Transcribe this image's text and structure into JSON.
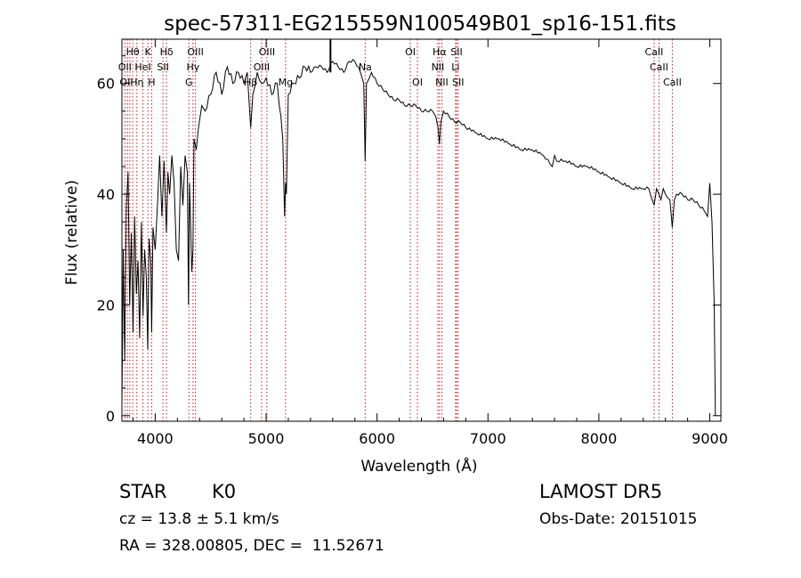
{
  "chart_data": {
    "type": "line",
    "title": "spec-57311-EG215559N100549B01_sp16-151.fits",
    "xlabel": "Wavelength (Å)",
    "ylabel": "Flux (relative)",
    "xlim": [
      3700,
      9100
    ],
    "ylim": [
      -1,
      68
    ],
    "xticks": [
      4000,
      5000,
      6000,
      7000,
      8000,
      9000
    ],
    "yticks": [
      0,
      20,
      40,
      60
    ],
    "grid": false,
    "series": [
      {
        "color": "#000000",
        "x": [
          3700,
          3712,
          3725,
          3740,
          3755,
          3770,
          3785,
          3800,
          3815,
          3830,
          3845,
          3860,
          3875,
          3890,
          3905,
          3920,
          3933,
          3945,
          3960,
          3968,
          3980,
          4000,
          4020,
          4040,
          4060,
          4080,
          4101,
          4115,
          4130,
          4150,
          4170,
          4190,
          4210,
          4230,
          4250,
          4270,
          4290,
          4300,
          4310,
          4330,
          4340,
          4350,
          4370,
          4390,
          4420,
          4450,
          4500,
          4550,
          4600,
          4650,
          4700,
          4750,
          4800,
          4830,
          4861,
          4880,
          4920,
          4960,
          5000,
          5050,
          5100,
          5150,
          5167,
          5175,
          5183,
          5200,
          5250,
          5300,
          5350,
          5400,
          5450,
          5500,
          5550,
          5600,
          5650,
          5700,
          5750,
          5800,
          5850,
          5880,
          5893,
          5905,
          5950,
          6000,
          6050,
          6100,
          6150,
          6200,
          6250,
          6300,
          6350,
          6400,
          6450,
          6500,
          6530,
          6550,
          6563,
          6575,
          6600,
          6650,
          6700,
          6750,
          6800,
          6900,
          7000,
          7100,
          7200,
          7300,
          7400,
          7500,
          7580,
          7600,
          7620,
          7700,
          7800,
          7900,
          8000,
          8100,
          8200,
          8300,
          8400,
          8450,
          8498,
          8520,
          8542,
          8560,
          8580,
          8600,
          8640,
          8662,
          8680,
          8700,
          8750,
          8800,
          8850,
          8900,
          8950,
          8980,
          9000,
          9020,
          9040,
          9050
        ],
        "y": [
          2,
          30,
          10,
          38,
          44,
          20,
          33,
          15,
          36,
          22,
          28,
          14,
          35,
          18,
          30,
          25,
          12,
          32,
          28,
          15,
          34,
          30,
          38,
          47,
          36,
          46,
          33,
          44,
          40,
          47,
          42,
          30,
          28,
          45,
          38,
          47,
          44,
          20,
          42,
          26,
          30,
          50,
          48,
          52,
          56,
          55,
          58,
          62,
          58,
          63,
          60,
          62,
          60,
          62,
          52,
          58,
          62,
          60,
          61,
          58,
          60,
          50,
          36,
          42,
          40,
          58,
          60,
          61,
          63,
          62,
          63,
          63,
          62,
          64,
          63,
          62,
          64,
          64,
          62,
          60,
          46,
          60,
          62,
          60,
          59,
          58,
          57,
          57,
          56,
          56,
          56,
          55,
          55,
          55,
          54,
          52,
          49,
          53,
          55,
          54,
          53,
          53,
          52,
          51,
          50,
          50,
          49,
          48,
          48,
          47,
          45,
          47,
          46,
          46,
          45,
          45,
          44,
          43,
          42,
          41,
          41,
          41,
          38,
          41,
          40,
          39,
          41,
          40,
          39,
          34,
          39,
          40,
          40,
          39,
          39,
          38,
          37,
          36,
          42,
          35,
          20,
          0
        ]
      }
    ],
    "line_labels": [
      {
        "text": "Hθ",
        "x": 3797,
        "row": 1
      },
      {
        "text": "K",
        "x": 3934,
        "row": 1
      },
      {
        "text": "Hδ",
        "x": 4102,
        "row": 1
      },
      {
        "text": "OIII",
        "x": 4363,
        "row": 1
      },
      {
        "text": "OIII",
        "x": 5007,
        "row": 1
      },
      {
        "text": "OI",
        "x": 6300,
        "row": 1
      },
      {
        "text": "Hα",
        "x": 6563,
        "row": 1
      },
      {
        "text": "SII",
        "x": 6717,
        "row": 1
      },
      {
        "text": "CaII",
        "x": 8498,
        "row": 1
      },
      {
        "text": "OII",
        "x": 3727,
        "row": 2
      },
      {
        "text": "HeI",
        "x": 3889,
        "row": 2
      },
      {
        "text": "SII",
        "x": 4070,
        "row": 2
      },
      {
        "text": "Hγ",
        "x": 4341,
        "row": 2
      },
      {
        "text": "OIII",
        "x": 4959,
        "row": 2
      },
      {
        "text": "Na",
        "x": 5893,
        "row": 2
      },
      {
        "text": "NII",
        "x": 6548,
        "row": 2
      },
      {
        "text": "Li",
        "x": 6708,
        "row": 2
      },
      {
        "text": "CaII",
        "x": 8542,
        "row": 2
      },
      {
        "text": "OI",
        "x": 3727,
        "row": 3
      },
      {
        "text": "Hη",
        "x": 3835,
        "row": 3
      },
      {
        "text": "H",
        "x": 3968,
        "row": 3
      },
      {
        "text": "G",
        "x": 4304,
        "row": 3
      },
      {
        "text": "Hβ",
        "x": 4861,
        "row": 3
      },
      {
        "text": "Mg",
        "x": 5175,
        "row": 3
      },
      {
        "text": "OI",
        "x": 6364,
        "row": 3
      },
      {
        "text": "NII",
        "x": 6584,
        "row": 3
      },
      {
        "text": "SII",
        "x": 6731,
        "row": 3
      },
      {
        "text": "CaII",
        "x": 8662,
        "row": 3
      }
    ],
    "line_positions": [
      3727,
      3750,
      3771,
      3797,
      3835,
      3889,
      3934,
      3968,
      4070,
      4102,
      4304,
      4341,
      4363,
      4861,
      4959,
      5007,
      5175,
      5893,
      6300,
      6364,
      6548,
      6563,
      6584,
      6708,
      6717,
      6731,
      8498,
      8542,
      8662
    ]
  },
  "info": {
    "class": "STAR",
    "subclass": "K0",
    "survey": "LAMOST DR5",
    "cz": "cz = 13.8 ± 5.1 km/s",
    "obs_date": "Obs-Date: 20151015",
    "radec": "RA = 328.00805, DEC =  11.52671"
  }
}
